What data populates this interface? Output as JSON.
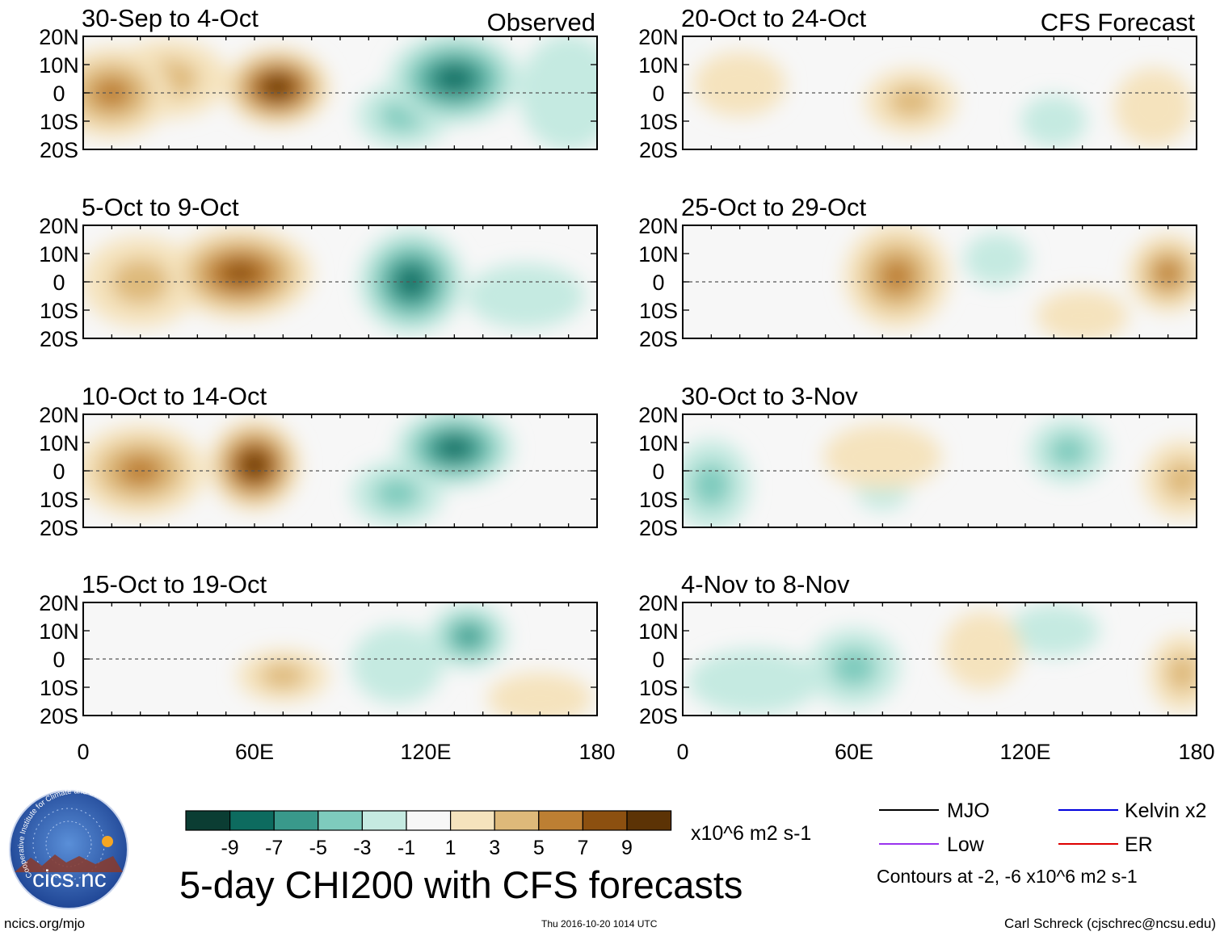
{
  "figure_title": "5-day CHI200 with CFS forecasts",
  "footer": {
    "left": "ncics.org/mjo",
    "center": "Thu 2016-10-20 1014 UTC",
    "right": "Carl Schreck (cjschrec@ncsu.edu)"
  },
  "logo": {
    "main": "cics.nc",
    "arc": "Cooperative Institute for Climate and Satellites"
  },
  "colorbar": {
    "unit": "x10^6 m2 s-1",
    "tick_labels": [
      "-9",
      "-7",
      "-5",
      "-3",
      "-1",
      "1",
      "3",
      "5",
      "7",
      "9"
    ],
    "colors": [
      "#0b3d33",
      "#0d6b5f",
      "#39998b",
      "#7ecbbd",
      "#c5eae1",
      "#f7f7f7",
      "#f5e3bd",
      "#deb97a",
      "#bd7f33",
      "#8c5010",
      "#5c3305"
    ]
  },
  "legend": {
    "items": [
      {
        "label": "MJO",
        "color": "#000000"
      },
      {
        "label": "Kelvin x2",
        "color": "#0000dd"
      },
      {
        "label": "Low",
        "color": "#9933ee"
      },
      {
        "label": "ER",
        "color": "#dd0000"
      }
    ],
    "note": "Contours at -2, -6 x10^6 m2 s-1"
  },
  "chart_data": {
    "type": "heatmap",
    "variable": "CHI200",
    "unit": "x10^6 m2 s-1",
    "lon_range": [
      0,
      180
    ],
    "lat_range": [
      -20,
      20
    ],
    "lon_ticks": [
      "0",
      "60E",
      "120E",
      "180"
    ],
    "lat_ticks": [
      "20N",
      "10N",
      "0",
      "10S",
      "20S"
    ],
    "columns": [
      {
        "header": "Observed",
        "panels": [
          {
            "title": "30-Sep to 4-Oct",
            "anomalies": [
              {
                "lon": 10,
                "lat": 0,
                "v": 6.5,
                "sx": 18,
                "sy": 14
              },
              {
                "lon": 68,
                "lat": 2,
                "v": 9.5,
                "sx": 16,
                "sy": 12
              },
              {
                "lon": 30,
                "lat": 5,
                "v": 5,
                "sx": 18,
                "sy": 12
              },
              {
                "lon": 130,
                "lat": 5,
                "v": -8.5,
                "sx": 20,
                "sy": 14
              },
              {
                "lon": 112,
                "lat": -8,
                "v": -4,
                "sx": 14,
                "sy": 10
              },
              {
                "lon": 170,
                "lat": 0,
                "v": -2.5,
                "sx": 15,
                "sy": 18
              }
            ]
          },
          {
            "title": "5-Oct to 9-Oct",
            "anomalies": [
              {
                "lon": 55,
                "lat": 3,
                "v": 9,
                "sx": 22,
                "sy": 14
              },
              {
                "lon": 20,
                "lat": 0,
                "v": 5,
                "sx": 18,
                "sy": 14
              },
              {
                "lon": 115,
                "lat": 0,
                "v": -9,
                "sx": 16,
                "sy": 16
              },
              {
                "lon": 155,
                "lat": -5,
                "v": -3,
                "sx": 18,
                "sy": 10
              }
            ]
          },
          {
            "title": "10-Oct to 14-Oct",
            "anomalies": [
              {
                "lon": 60,
                "lat": 2,
                "v": 9.5,
                "sx": 14,
                "sy": 14
              },
              {
                "lon": 20,
                "lat": 0,
                "v": 7,
                "sx": 20,
                "sy": 14
              },
              {
                "lon": 130,
                "lat": 8,
                "v": -8.5,
                "sx": 18,
                "sy": 12
              },
              {
                "lon": 110,
                "lat": -8,
                "v": -4,
                "sx": 14,
                "sy": 10
              }
            ]
          },
          {
            "title": "15-Oct to 19-Oct",
            "anomalies": [
              {
                "lon": 70,
                "lat": -6,
                "v": 4,
                "sx": 14,
                "sy": 8
              },
              {
                "lon": 135,
                "lat": 8,
                "v": -6,
                "sx": 12,
                "sy": 10
              },
              {
                "lon": 110,
                "lat": -2,
                "v": -2.5,
                "sx": 14,
                "sy": 12
              },
              {
                "lon": 160,
                "lat": -14,
                "v": 2.5,
                "sx": 16,
                "sy": 8
              }
            ]
          }
        ]
      },
      {
        "header": "CFS Forecast",
        "panels": [
          {
            "title": "20-Oct to 24-Oct",
            "anomalies": [
              {
                "lon": 80,
                "lat": -3,
                "v": 5,
                "sx": 14,
                "sy": 10
              },
              {
                "lon": 20,
                "lat": 3,
                "v": 3,
                "sx": 14,
                "sy": 10
              },
              {
                "lon": 165,
                "lat": -5,
                "v": 3,
                "sx": 12,
                "sy": 12
              },
              {
                "lon": 130,
                "lat": -10,
                "v": -2,
                "sx": 10,
                "sy": 8
              }
            ]
          },
          {
            "title": "25-Oct to 29-Oct",
            "anomalies": [
              {
                "lon": 75,
                "lat": 2,
                "v": 7,
                "sx": 16,
                "sy": 16
              },
              {
                "lon": 170,
                "lat": 3,
                "v": 6,
                "sx": 12,
                "sy": 12
              },
              {
                "lon": 110,
                "lat": 8,
                "v": -2,
                "sx": 10,
                "sy": 8
              },
              {
                "lon": 140,
                "lat": -12,
                "v": 2.5,
                "sx": 14,
                "sy": 8
              }
            ]
          },
          {
            "title": "30-Oct to 3-Nov",
            "anomalies": [
              {
                "lon": 135,
                "lat": 7,
                "v": -5,
                "sx": 12,
                "sy": 10
              },
              {
                "lon": 10,
                "lat": -5,
                "v": -4,
                "sx": 12,
                "sy": 14
              },
              {
                "lon": 70,
                "lat": 5,
                "v": 3,
                "sx": 18,
                "sy": 10
              },
              {
                "lon": 175,
                "lat": -3,
                "v": 4.5,
                "sx": 12,
                "sy": 12
              },
              {
                "lon": 70,
                "lat": -7,
                "v": -2.5,
                "sx": 8,
                "sy": 6
              }
            ]
          },
          {
            "title": "4-Nov to 8-Nov",
            "anomalies": [
              {
                "lon": 60,
                "lat": -3,
                "v": -4,
                "sx": 14,
                "sy": 12
              },
              {
                "lon": 25,
                "lat": -8,
                "v": -3,
                "sx": 20,
                "sy": 10
              },
              {
                "lon": 130,
                "lat": 10,
                "v": -3,
                "sx": 14,
                "sy": 8
              },
              {
                "lon": 175,
                "lat": -5,
                "v": 5,
                "sx": 10,
                "sy": 12
              },
              {
                "lon": 105,
                "lat": 3,
                "v": 3,
                "sx": 12,
                "sy": 12
              }
            ]
          }
        ]
      }
    ]
  }
}
